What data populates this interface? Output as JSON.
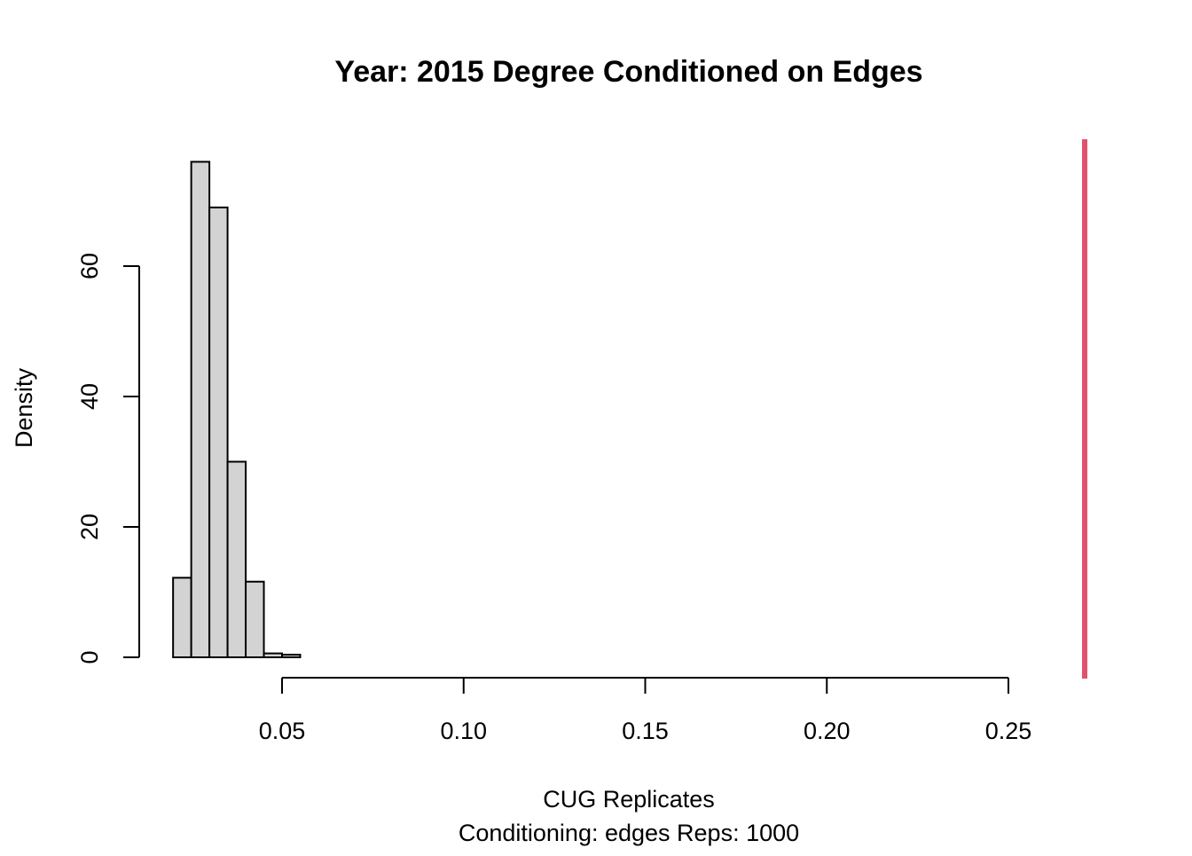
{
  "chart_data": {
    "type": "bar",
    "title": "Year: 2015  Degree Conditioned on Edges",
    "xlabel": "CUG Replicates",
    "subtitle": "Conditioning: edges Reps: 1000",
    "ylabel": "Density",
    "xlim": [
      0.01,
      0.27
    ],
    "ylim": [
      0,
      70
    ],
    "x_ticks": [
      0.05,
      0.1,
      0.15,
      0.2,
      0.25
    ],
    "x_tick_labels": [
      "0.05",
      "0.10",
      "0.15",
      "0.20",
      "0.25"
    ],
    "y_ticks": [
      0,
      20,
      40,
      60
    ],
    "y_tick_labels": [
      "0",
      "20",
      "40",
      "60"
    ],
    "bins": [
      {
        "x0": 0.02,
        "x1": 0.025,
        "density": 12.2
      },
      {
        "x0": 0.025,
        "x1": 0.03,
        "density": 76.0
      },
      {
        "x0": 0.03,
        "x1": 0.035,
        "density": 69.0
      },
      {
        "x0": 0.035,
        "x1": 0.04,
        "density": 30.0
      },
      {
        "x0": 0.04,
        "x1": 0.045,
        "density": 11.6
      },
      {
        "x0": 0.045,
        "x1": 0.05,
        "density": 0.6
      },
      {
        "x0": 0.05,
        "x1": 0.055,
        "density": 0.4
      }
    ],
    "bar_color": "#d3d3d3",
    "bar_border_color": "#000000",
    "observed_line": {
      "x": 0.271,
      "color": "#df536b"
    },
    "grid": false,
    "legend": "none"
  }
}
